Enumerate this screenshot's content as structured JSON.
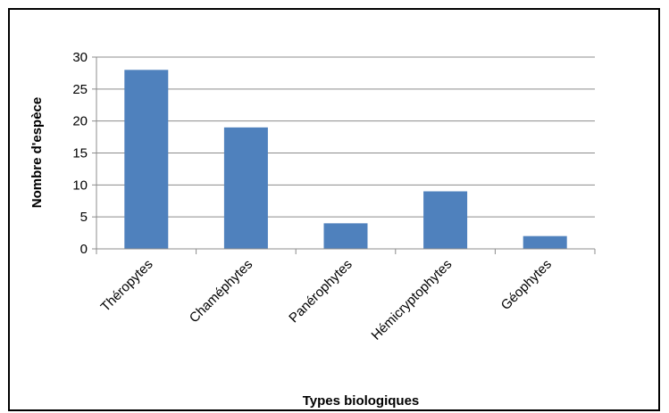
{
  "chart_data": {
    "type": "bar",
    "categories": [
      "Théropytes",
      "Chaméphytes",
      "Panérophytes",
      "Hémicryptophytes",
      "Géophytes"
    ],
    "values": [
      28,
      19,
      4,
      9,
      2
    ],
    "title": "",
    "xlabel": "Types biologiques",
    "ylabel": "Nombre d'espèce",
    "ylim": [
      0,
      30
    ],
    "yticks": [
      0,
      5,
      10,
      15,
      20,
      25,
      30
    ],
    "grid": true,
    "legend": "none",
    "bar_color": "#4F81BD",
    "grid_color": "#8C8C8C"
  }
}
